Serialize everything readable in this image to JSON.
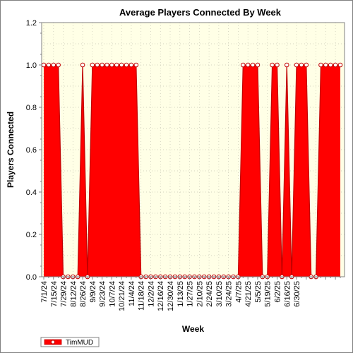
{
  "chart_data": {
    "type": "area",
    "title": "Average Players Connected By Week",
    "xlabel": "Week",
    "ylabel": "Players Connected",
    "ylim": [
      0,
      1.2
    ],
    "yticks": [
      "0.0",
      "0.2",
      "0.4",
      "0.6",
      "0.8",
      "1.0",
      "1.2"
    ],
    "x_tick_labels": [
      "7/1/24",
      "7/15/24",
      "7/29/24",
      "8/12/24",
      "8/26/24",
      "9/9/24",
      "9/23/24",
      "10/7/24",
      "10/21/24",
      "11/4/24",
      "11/18/24",
      "12/2/24",
      "12/16/24",
      "12/30/24",
      "1/13/25",
      "1/27/25",
      "2/10/25",
      "2/24/25",
      "3/10/25",
      "3/24/25",
      "4/7/25",
      "4/21/25",
      "5/5/25",
      "5/19/25",
      "6/2/25",
      "6/16/25",
      "6/30/25"
    ],
    "grid": true,
    "legend_position": "bottom-left",
    "background_color": "#ffffe6",
    "series": [
      {
        "name": "TimMUD",
        "color": "#ff0000",
        "values": [
          1,
          1,
          1,
          1,
          0,
          0,
          0,
          0,
          1,
          0,
          1,
          1,
          1,
          1,
          1,
          1,
          1,
          1,
          1,
          1,
          0,
          0,
          0,
          0,
          0,
          0,
          0,
          0,
          0,
          0,
          0,
          0,
          0,
          0,
          0,
          0,
          0,
          0,
          0,
          0,
          0,
          1,
          1,
          1,
          1,
          0,
          0,
          1,
          1,
          0,
          1,
          0,
          1,
          1,
          1,
          0,
          0,
          1,
          1,
          1,
          1,
          1
        ]
      }
    ]
  }
}
